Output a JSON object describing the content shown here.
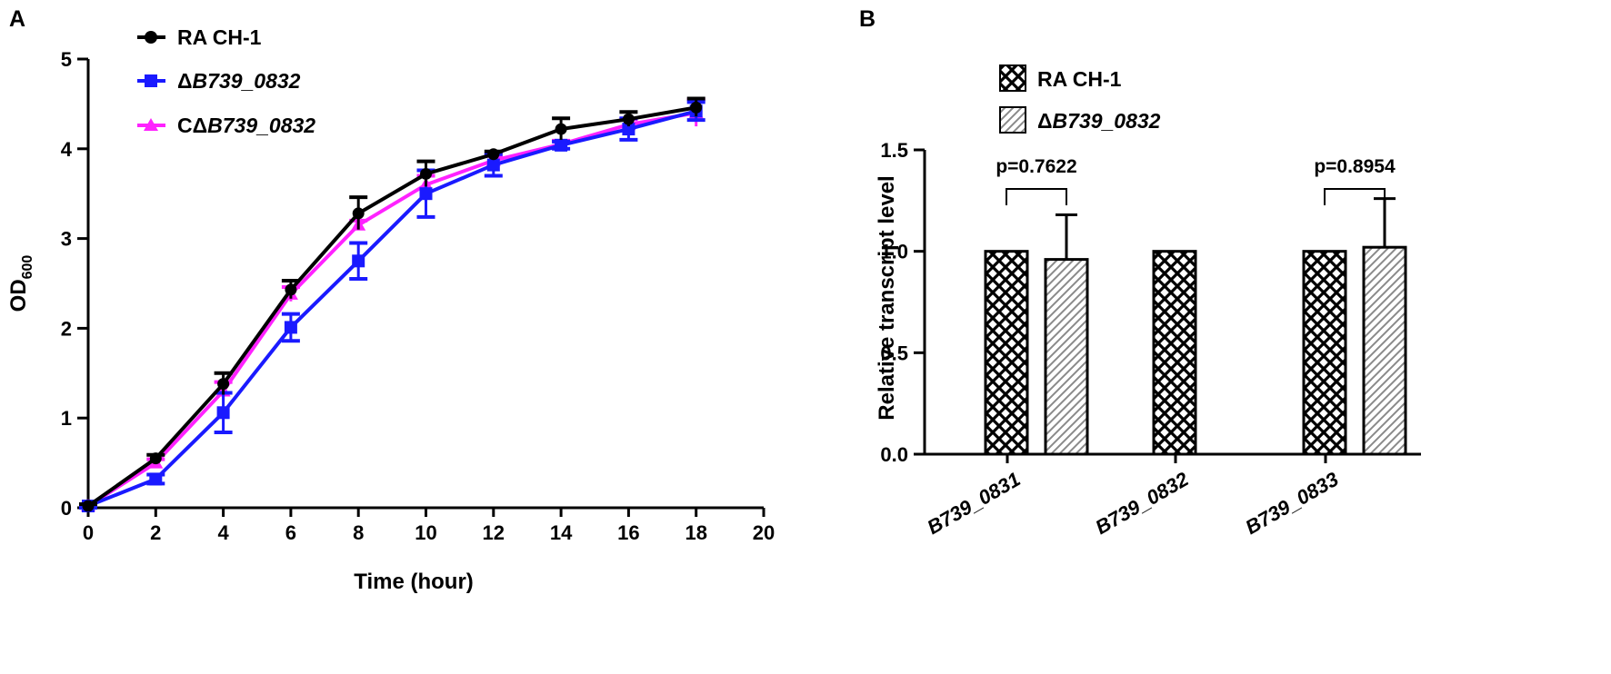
{
  "chart_data": [
    {
      "panel": "A",
      "type": "line",
      "xlabel": "Time (hour)",
      "ylabel": "OD",
      "ylabel_subscript": "600",
      "xlim": [
        0,
        20
      ],
      "ylim": [
        0,
        5
      ],
      "xticks": [
        "0",
        "2",
        "4",
        "6",
        "8",
        "10",
        "12",
        "14",
        "16",
        "18",
        "20"
      ],
      "yticks": [
        "0",
        "1",
        "2",
        "3",
        "4",
        "5"
      ],
      "x": [
        0,
        2,
        4,
        6,
        8,
        10,
        12,
        14,
        16,
        18
      ],
      "series": [
        {
          "name": "RA CH-1",
          "label_prefix": "",
          "label_italic": "RA CH-1",
          "italic": false,
          "color": "#000000",
          "marker": "circle",
          "values": [
            0.02,
            0.55,
            1.38,
            2.43,
            3.28,
            3.72,
            3.94,
            4.22,
            4.33,
            4.46
          ],
          "errors": [
            0.02,
            0.04,
            0.12,
            0.1,
            0.18,
            0.14,
            0.03,
            0.12,
            0.08,
            0.1
          ]
        },
        {
          "name": "ΔB739_0832",
          "label_prefix": "Δ",
          "label_italic": "B739_0832",
          "italic": true,
          "color": "#1a1aff",
          "marker": "square",
          "values": [
            0.02,
            0.32,
            1.06,
            2.01,
            2.75,
            3.5,
            3.82,
            4.04,
            4.22,
            4.42
          ],
          "errors": [
            0.02,
            0.05,
            0.22,
            0.15,
            0.2,
            0.26,
            0.12,
            0.04,
            0.12,
            0.1
          ]
        },
        {
          "name": "CΔB739_0832",
          "label_prefix": "CΔ",
          "label_italic": "B739_0832",
          "italic": true,
          "color": "#ff22ff",
          "marker": "triangle",
          "values": [
            0.02,
            0.5,
            1.3,
            2.38,
            3.15,
            3.6,
            3.87,
            4.05,
            4.27,
            4.4
          ],
          "errors": [
            0.02,
            0.04,
            0.1,
            0.08,
            0.05,
            0.1,
            0.05,
            0.04,
            0.06,
            0.15
          ]
        }
      ]
    },
    {
      "panel": "B",
      "type": "bar",
      "xlabel": "",
      "ylabel": "Relative transcript level",
      "ylim": [
        0,
        1.5
      ],
      "yticks": [
        "0.0",
        "0.5",
        "1.0",
        "1.5"
      ],
      "categories": [
        "B739_0831",
        "B739_0832",
        "B739_0833"
      ],
      "series": [
        {
          "name": "RA CH-1",
          "label_prefix": "",
          "label_italic": "RA CH-1",
          "italic": false,
          "pattern": "crosshatch",
          "values": [
            1.0,
            1.0,
            1.0
          ],
          "errors": [
            0,
            0,
            0
          ]
        },
        {
          "name": "ΔB739_0832",
          "label_prefix": "Δ",
          "label_italic": "B739_0832",
          "italic": true,
          "pattern": "diagonal",
          "values": [
            0.96,
            null,
            1.02
          ],
          "errors": [
            0.22,
            null,
            0.24
          ]
        }
      ],
      "annotations": [
        {
          "category": "B739_0831",
          "text": "p=0.7622"
        },
        {
          "category": "B739_0833",
          "text": "p=0.8954"
        }
      ]
    }
  ]
}
